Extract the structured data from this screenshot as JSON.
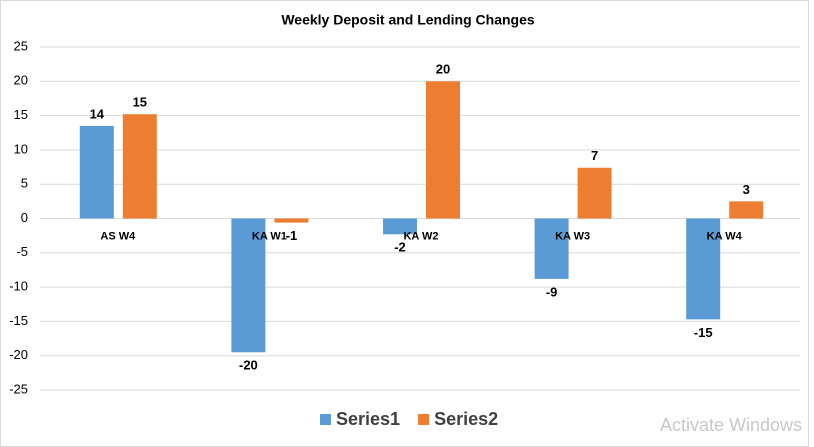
{
  "chart_data": {
    "type": "bar",
    "title": "Weekly Deposit and Lending Changes",
    "categories": [
      "AS W4",
      "KA W1",
      "KA W2",
      "KA W3",
      "KA W4"
    ],
    "series": [
      {
        "name": "Series1",
        "color": "#5b9bd5",
        "values": [
          13.5,
          -19.5,
          -2.3,
          -8.8,
          -14.7
        ],
        "value_labels": [
          "14",
          "-20",
          "-2",
          "-9",
          "-15"
        ]
      },
      {
        "name": "Series2",
        "color": "#ed7d31",
        "values": [
          15.2,
          -0.6,
          20,
          7.4,
          2.5
        ],
        "value_labels": [
          "15",
          "-1",
          "20",
          "7",
          "3"
        ]
      }
    ],
    "ylim": [
      -25,
      25
    ],
    "yticks": [
      -25,
      -20,
      -15,
      -10,
      -5,
      0,
      5,
      10,
      15,
      20,
      25
    ],
    "grid": true,
    "legend": "bottom"
  },
  "watermark": "Activate Windows"
}
